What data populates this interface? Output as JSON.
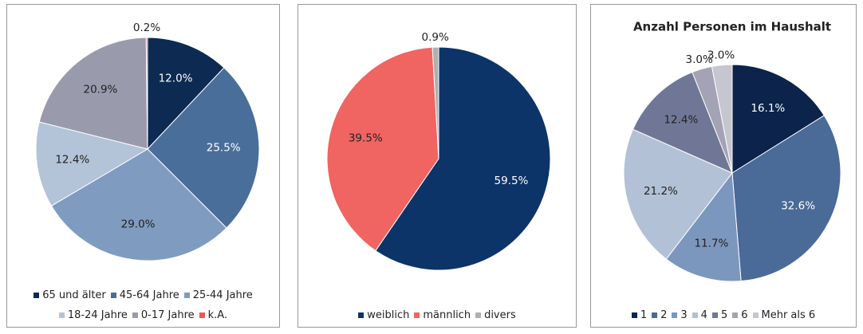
{
  "chart_data": [
    {
      "type": "pie",
      "categories": [
        "65 und älter",
        "45-64 Jahre",
        "25-44 Jahre",
        "18-24 Jahre",
        "0-17 Jahre",
        "k.A."
      ],
      "values": [
        12.0,
        25.5,
        29.0,
        12.4,
        20.9,
        0.2
      ],
      "value_labels": [
        "12.0%",
        "25.5%",
        "29.0%",
        "12.4%",
        "20.9%",
        "0.2%"
      ],
      "colors": [
        "#0d2a52",
        "#4a6e9a",
        "#7f9cc0",
        "#b3c3d8",
        "#9a9aad",
        "#e85a5a"
      ],
      "legend": "bottom"
    },
    {
      "type": "pie",
      "categories": [
        "weiblich",
        "männlich",
        "divers"
      ],
      "values": [
        59.5,
        39.5,
        0.9
      ],
      "value_labels": [
        "59.5%",
        "39.5%",
        "0.9%"
      ],
      "colors": [
        "#0d3468",
        "#f06461",
        "#b0b0b0"
      ],
      "legend": "bottom"
    },
    {
      "type": "pie",
      "title": "Anzahl Personen im Haushalt",
      "categories": [
        "1",
        "2",
        "3",
        "4",
        "5",
        "6",
        "Mehr als 6"
      ],
      "values": [
        16.1,
        32.6,
        11.7,
        21.2,
        12.4,
        3.0,
        3.0
      ],
      "value_labels": [
        "16.1%",
        "32.6%",
        "11.7%",
        "21.2%",
        "12.4%",
        "3.0%",
        "3.0%"
      ],
      "colors": [
        "#0c234b",
        "#4a6a98",
        "#7c97bd",
        "#b2c1d6",
        "#707796",
        "#a3a3b5",
        "#c6c6d0"
      ],
      "legend": "bottom"
    }
  ]
}
